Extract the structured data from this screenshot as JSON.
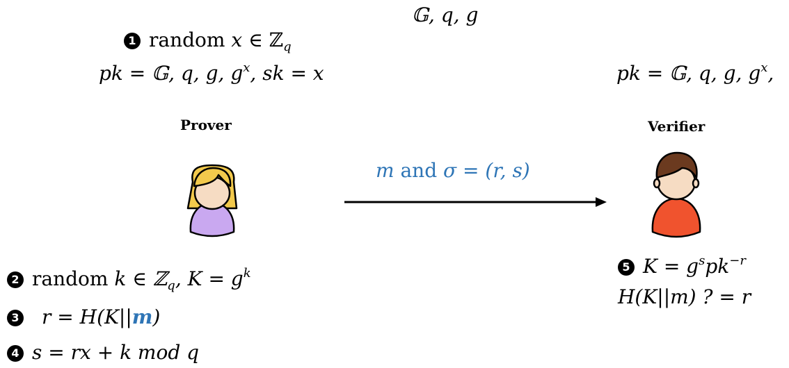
{
  "public_params": "𝔾, q, g",
  "prover": {
    "label": "Prover",
    "setup": {
      "step": "1",
      "prefix": "random",
      "var": "x",
      "in": "∈",
      "set": "ℤ",
      "set_sub": "q",
      "keys": "pk = 𝔾, q, g, g",
      "keys_sup": "x",
      "keys_tail": ", sk = x"
    },
    "steps": [
      {
        "step": "2",
        "prefix": "random",
        "body": "k ∈ ℤ",
        "body_sub": "q",
        "tail": ", K = g",
        "tail_sup": "k"
      },
      {
        "step": "3",
        "body": "r = H(K||",
        "highlight": "m",
        "tail": ")"
      },
      {
        "step": "4",
        "body": "s = rx + k mod q"
      }
    ]
  },
  "verifier": {
    "label": "Verifier",
    "keys": "pk = 𝔾, q, g, g",
    "keys_sup": "x",
    "keys_tail": ",",
    "steps": [
      {
        "step": "5",
        "body": "K = g",
        "sup1": "s",
        "mid": "pk",
        "sup2": "−r"
      },
      {
        "body": "H(K||m) ? = r"
      }
    ]
  },
  "message": {
    "m": "m",
    "and": "and",
    "sig": "σ = (r, s)"
  },
  "colors": {
    "accent": "#2E75B6",
    "prover_body": "#C9A8F0",
    "prover_hair": "#F2C94C",
    "verifier_body": "#F0532E",
    "verifier_hair": "#6B3A1F",
    "skin": "#F6DCC3"
  }
}
